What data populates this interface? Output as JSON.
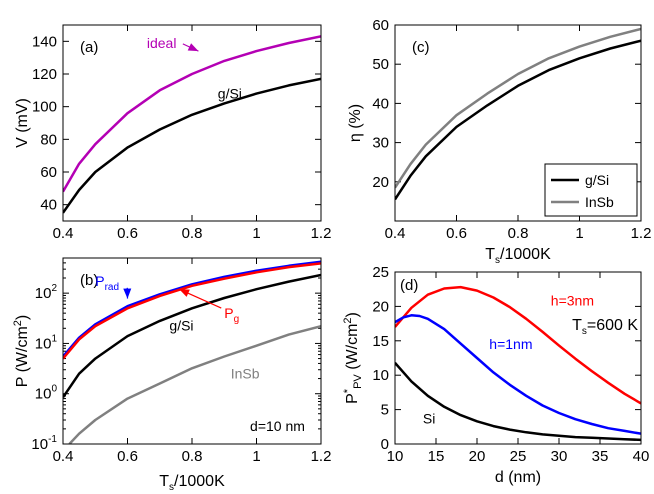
{
  "chart_data": [
    {
      "id": "a",
      "type": "line",
      "panel_label": "(a)",
      "xlabel": "",
      "ylabel": "V (mV)",
      "xlim": [
        0.4,
        1.2
      ],
      "ylim": [
        30,
        150
      ],
      "yscale": "linear",
      "xticks": [
        0.4,
        0.6,
        0.8,
        1.0,
        1.2
      ],
      "xtick_labels": [
        "0.4",
        "0.6",
        "0.8",
        "1",
        "1.2"
      ],
      "yticks": [
        40,
        60,
        80,
        100,
        120,
        140
      ],
      "ytick_labels": [
        "40",
        "60",
        "80",
        "100",
        "120",
        "140"
      ],
      "series": [
        {
          "name": "ideal",
          "color": "#b400b4",
          "x": [
            0.4,
            0.45,
            0.5,
            0.6,
            0.7,
            0.8,
            0.9,
            1.0,
            1.1,
            1.2
          ],
          "y": [
            48,
            65,
            77,
            96,
            110,
            120,
            128,
            134,
            139,
            143
          ]
        },
        {
          "name": "g/Si",
          "color": "#000000",
          "x": [
            0.4,
            0.45,
            0.5,
            0.6,
            0.7,
            0.8,
            0.9,
            1.0,
            1.1,
            1.2
          ],
          "y": [
            35,
            49,
            60,
            75,
            86,
            95,
            102,
            108,
            113,
            117
          ]
        }
      ],
      "annotations": [
        {
          "text": "ideal",
          "color": "#b400b4",
          "arrow_to": [
            0.82,
            134
          ],
          "at": [
            0.66,
            136
          ]
        },
        {
          "text": "g/Si",
          "color": "#000000",
          "at": [
            0.88,
            105
          ]
        }
      ]
    },
    {
      "id": "b",
      "type": "line",
      "panel_label": "(b)",
      "xlabel": "Ts/1000K",
      "ylabel": "P (W/cm2)",
      "xlim": [
        0.4,
        1.2
      ],
      "ylim": [
        0.1,
        500
      ],
      "yscale": "log",
      "xticks": [
        0.4,
        0.6,
        0.8,
        1.0,
        1.2
      ],
      "xtick_labels": [
        "0.4",
        "0.6",
        "0.8",
        "1",
        "1.2"
      ],
      "yticks": [
        0.1,
        1,
        10,
        100
      ],
      "ytick_labels": [
        {
          "base": "10",
          "exp": "-1"
        },
        {
          "base": "10",
          "exp": "0"
        },
        {
          "base": "10",
          "exp": "1"
        },
        {
          "base": "10",
          "exp": "2"
        }
      ],
      "series": [
        {
          "name": "Prad",
          "color": "#0000ff",
          "x": [
            0.4,
            0.45,
            0.5,
            0.6,
            0.7,
            0.8,
            0.9,
            1.0,
            1.1,
            1.2
          ],
          "y": [
            5.5,
            13,
            24,
            55,
            95,
            150,
            210,
            280,
            350,
            420
          ]
        },
        {
          "name": "Pg",
          "color": "#ff0000",
          "x": [
            0.4,
            0.45,
            0.5,
            0.6,
            0.7,
            0.8,
            0.9,
            1.0,
            1.1,
            1.2
          ],
          "y": [
            5,
            12,
            22,
            50,
            88,
            140,
            195,
            260,
            330,
            390
          ]
        },
        {
          "name": "g/Si",
          "color": "#000000",
          "x": [
            0.4,
            0.45,
            0.5,
            0.6,
            0.7,
            0.8,
            0.9,
            1.0,
            1.1,
            1.2
          ],
          "y": [
            0.85,
            2.5,
            5,
            14,
            28,
            50,
            80,
            120,
            170,
            230
          ]
        },
        {
          "name": "InSb",
          "color": "#808080",
          "x": [
            0.42,
            0.45,
            0.5,
            0.6,
            0.7,
            0.8,
            0.9,
            1.0,
            1.1,
            1.2
          ],
          "y": [
            0.1,
            0.16,
            0.3,
            0.8,
            1.6,
            3.2,
            5.5,
            9,
            15,
            22
          ]
        }
      ],
      "annotations": [
        {
          "text": "P",
          "sub": "rad",
          "color": "#0000ff",
          "at": [
            0.5,
            140
          ],
          "arrow_to": [
            0.6,
            78
          ]
        },
        {
          "text": "P",
          "sub": "g",
          "color": "#ff0000",
          "at": [
            0.9,
            32
          ],
          "arrow_to": [
            0.76,
            120
          ]
        },
        {
          "text": "g/Si",
          "color": "#000000",
          "at": [
            0.73,
            18
          ]
        },
        {
          "text": "InSb",
          "color": "#808080",
          "at": [
            0.92,
            2.0
          ]
        },
        {
          "text": "d=10 nm",
          "color": "#000000",
          "at": [
            0.98,
            0.18
          ]
        }
      ]
    },
    {
      "id": "c",
      "type": "line",
      "panel_label": "(c)",
      "xlabel": "Ts/1000K",
      "ylabel": "η (%)",
      "xlim": [
        0.4,
        1.2
      ],
      "ylim": [
        10,
        60
      ],
      "yscale": "linear",
      "xticks": [
        0.4,
        0.6,
        0.8,
        1.0,
        1.2
      ],
      "xtick_labels": [
        "0.4",
        "0.6",
        "0.8",
        "1",
        "1.2"
      ],
      "yticks": [
        20,
        30,
        40,
        50,
        60
      ],
      "ytick_labels": [
        "20",
        "30",
        "40",
        "50",
        "60"
      ],
      "series": [
        {
          "name": "g/Si",
          "color": "#000000",
          "x": [
            0.4,
            0.45,
            0.5,
            0.6,
            0.7,
            0.8,
            0.9,
            1.0,
            1.1,
            1.2
          ],
          "y": [
            15.5,
            21.5,
            26.5,
            34,
            39.5,
            44.5,
            48.5,
            51.5,
            54,
            56
          ]
        },
        {
          "name": "InSb",
          "color": "#808080",
          "x": [
            0.4,
            0.45,
            0.5,
            0.6,
            0.7,
            0.8,
            0.9,
            1.0,
            1.1,
            1.2
          ],
          "y": [
            18.5,
            24.5,
            29.5,
            37,
            42.5,
            47.5,
            51.5,
            54.5,
            57,
            59
          ]
        }
      ],
      "legend": {
        "placement": "bottom-right",
        "entries": [
          "g/Si",
          "InSb"
        ]
      }
    },
    {
      "id": "d",
      "type": "line",
      "panel_label": "(d)",
      "xlabel": "d (nm)",
      "ylabel": "P*PV (W/cm2)",
      "xlim": [
        10,
        40
      ],
      "ylim": [
        0,
        25
      ],
      "yscale": "linear",
      "xticks": [
        10,
        15,
        20,
        25,
        30,
        35,
        40
      ],
      "xtick_labels": [
        "10",
        "15",
        "20",
        "25",
        "30",
        "35",
        "40"
      ],
      "yticks": [
        0,
        5,
        10,
        15,
        20,
        25
      ],
      "ytick_labels": [
        "0",
        "5",
        "10",
        "15",
        "20",
        "25"
      ],
      "series": [
        {
          "name": "h=3nm",
          "color": "#ff0000",
          "x": [
            10,
            12,
            14,
            16,
            18,
            20,
            22,
            24,
            26,
            28,
            30,
            32,
            34,
            36,
            38,
            40
          ],
          "y": [
            17,
            19.8,
            21.7,
            22.6,
            22.8,
            22.3,
            21.3,
            19.9,
            18.2,
            16.3,
            14.3,
            12.4,
            10.6,
            8.9,
            7.3,
            5.9
          ]
        },
        {
          "name": "h=1nm",
          "color": "#0000ff",
          "x": [
            10,
            11,
            12,
            13,
            14,
            16,
            18,
            20,
            22,
            24,
            26,
            28,
            30,
            32,
            34,
            36,
            38,
            40
          ],
          "y": [
            17.7,
            18.4,
            18.7,
            18.6,
            18.2,
            16.7,
            14.6,
            12.5,
            10.4,
            8.6,
            7.0,
            5.6,
            4.5,
            3.6,
            2.9,
            2.3,
            1.9,
            1.5
          ]
        },
        {
          "name": "Si",
          "color": "#000000",
          "x": [
            10,
            12,
            14,
            16,
            18,
            20,
            22,
            24,
            26,
            28,
            30,
            32,
            34,
            36,
            38,
            40
          ],
          "y": [
            11.8,
            9.1,
            7.0,
            5.4,
            4.2,
            3.3,
            2.6,
            2.1,
            1.7,
            1.4,
            1.2,
            1.0,
            0.9,
            0.8,
            0.7,
            0.6
          ]
        }
      ],
      "annotations": [
        {
          "text": "h=3nm",
          "color": "#ff0000",
          "at": [
            29,
            20.1
          ]
        },
        {
          "text": "h=1nm",
          "color": "#0000ff",
          "at": [
            21.5,
            13.8
          ]
        },
        {
          "text": "Si",
          "color": "#000000",
          "at": [
            13.4,
            3.0
          ]
        },
        {
          "text": "T",
          "sub": "s",
          "suffix": "=600 K",
          "color": "#000000",
          "at": [
            31.6,
            16.6
          ]
        }
      ]
    }
  ]
}
